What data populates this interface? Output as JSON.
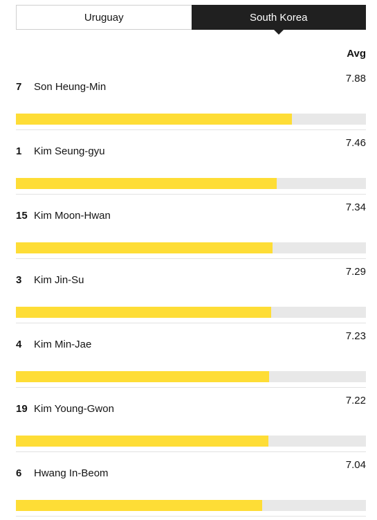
{
  "tabs": [
    {
      "label": "Uruguay",
      "active": false
    },
    {
      "label": "South Korea",
      "active": true
    }
  ],
  "header": {
    "avg_label": "Avg"
  },
  "colors": {
    "bar_fill": "#fedd36",
    "bar_track": "#e8e8e8",
    "active_tab": "#202020"
  },
  "players": [
    {
      "number": "7",
      "name": "Son Heung-Min",
      "avg": "7.88",
      "fill": 0.788
    },
    {
      "number": "1",
      "name": "Kim Seung-gyu",
      "avg": "7.46",
      "fill": 0.746
    },
    {
      "number": "15",
      "name": "Kim Moon-Hwan",
      "avg": "7.34",
      "fill": 0.734
    },
    {
      "number": "3",
      "name": "Kim Jin-Su",
      "avg": "7.29",
      "fill": 0.729
    },
    {
      "number": "4",
      "name": "Kim Min-Jae",
      "avg": "7.23",
      "fill": 0.723
    },
    {
      "number": "19",
      "name": "Kim Young-Gwon",
      "avg": "7.22",
      "fill": 0.722
    },
    {
      "number": "6",
      "name": "Hwang In-Beom",
      "avg": "7.04",
      "fill": 0.704
    }
  ]
}
